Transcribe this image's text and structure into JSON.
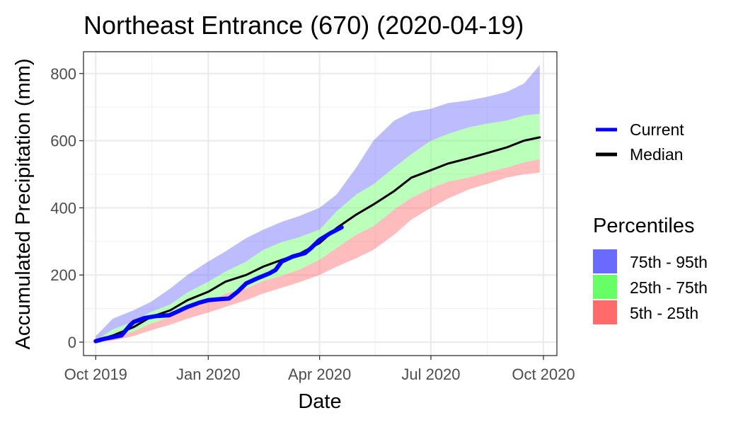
{
  "chart_data": {
    "type": "area",
    "title": "Northeast Entrance (670) (2020-04-19)",
    "xlabel": "Date",
    "ylabel": "Accumulated Precipitation (mm)",
    "x_ticks": [
      "Oct 2019",
      "Jan 2020",
      "Apr 2020",
      "Jul 2020",
      "Oct 2020"
    ],
    "x_tick_dates": [
      "2019-10-01",
      "2020-01-01",
      "2020-04-01",
      "2020-07-01",
      "2020-10-01"
    ],
    "xlim": [
      "2019-09-21",
      "2020-10-12"
    ],
    "y_ticks": [
      0,
      200,
      400,
      600,
      800
    ],
    "ylim": [
      -40,
      865
    ],
    "grid": true,
    "legend_position": "right",
    "lines": [
      {
        "name": "Current",
        "color": "#0000ff",
        "x": [
          "2019-10-01",
          "2019-10-08",
          "2019-10-15",
          "2019-10-22",
          "2019-10-29",
          "2019-11-01",
          "2019-11-10",
          "2019-11-20",
          "2019-11-30",
          "2019-12-05",
          "2019-12-15",
          "2019-12-25",
          "2020-01-01",
          "2020-01-10",
          "2020-01-18",
          "2020-01-25",
          "2020-02-01",
          "2020-02-10",
          "2020-02-20",
          "2020-02-25",
          "2020-03-01",
          "2020-03-10",
          "2020-03-20",
          "2020-03-25",
          "2020-04-01",
          "2020-04-10",
          "2020-04-19"
        ],
        "y": [
          3,
          10,
          15,
          20,
          50,
          60,
          72,
          78,
          80,
          88,
          105,
          118,
          125,
          128,
          130,
          150,
          175,
          190,
          205,
          215,
          240,
          255,
          265,
          280,
          305,
          325,
          342
        ]
      },
      {
        "name": "Median",
        "color": "#000000",
        "x": [
          "2019-10-01",
          "2019-10-15",
          "2019-11-01",
          "2019-11-15",
          "2019-12-01",
          "2019-12-15",
          "2020-01-01",
          "2020-01-15",
          "2020-02-01",
          "2020-02-15",
          "2020-03-01",
          "2020-03-15",
          "2020-04-01",
          "2020-04-15",
          "2020-05-01",
          "2020-05-15",
          "2020-06-01",
          "2020-06-15",
          "2020-07-01",
          "2020-07-15",
          "2020-08-01",
          "2020-08-15",
          "2020-09-01",
          "2020-09-15",
          "2020-09-28"
        ],
        "y": [
          3,
          20,
          45,
          75,
          95,
          125,
          150,
          180,
          200,
          225,
          245,
          262,
          295,
          340,
          380,
          410,
          450,
          490,
          512,
          532,
          548,
          562,
          580,
          600,
          610
        ]
      }
    ],
    "bands": [
      {
        "name": "75th - 95th",
        "color": "#6a6aff",
        "x": [
          "2019-10-01",
          "2019-10-15",
          "2019-11-01",
          "2019-11-15",
          "2019-12-01",
          "2019-12-15",
          "2020-01-01",
          "2020-01-15",
          "2020-02-01",
          "2020-02-15",
          "2020-03-01",
          "2020-03-15",
          "2020-04-01",
          "2020-04-15",
          "2020-05-01",
          "2020-05-15",
          "2020-06-01",
          "2020-06-15",
          "2020-07-01",
          "2020-07-15",
          "2020-08-01",
          "2020-08-15",
          "2020-09-01",
          "2020-09-15",
          "2020-09-28"
        ],
        "low": [
          5,
          38,
          62,
          90,
          112,
          148,
          180,
          210,
          240,
          275,
          298,
          312,
          335,
          390,
          440,
          470,
          520,
          560,
          600,
          620,
          640,
          650,
          660,
          675,
          680
        ],
        "high": [
          18,
          70,
          95,
          120,
          160,
          200,
          240,
          270,
          310,
          335,
          358,
          375,
          400,
          440,
          520,
          600,
          660,
          685,
          695,
          712,
          720,
          730,
          745,
          770,
          825
        ]
      },
      {
        "name": "25th - 75th",
        "color": "#66ff66",
        "x": [
          "2019-10-01",
          "2019-10-15",
          "2019-11-01",
          "2019-11-15",
          "2019-12-01",
          "2019-12-15",
          "2020-01-01",
          "2020-01-15",
          "2020-02-01",
          "2020-02-15",
          "2020-03-01",
          "2020-03-15",
          "2020-04-01",
          "2020-04-15",
          "2020-05-01",
          "2020-05-15",
          "2020-06-01",
          "2020-06-15",
          "2020-07-01",
          "2020-07-15",
          "2020-08-01",
          "2020-08-15",
          "2020-09-01",
          "2020-09-15",
          "2020-09-28"
        ],
        "low": [
          3,
          15,
          32,
          55,
          75,
          100,
          118,
          145,
          160,
          182,
          198,
          215,
          245,
          280,
          320,
          345,
          395,
          430,
          458,
          478,
          490,
          505,
          520,
          535,
          545
        ],
        "high": [
          5,
          38,
          62,
          90,
          112,
          148,
          180,
          210,
          240,
          275,
          298,
          312,
          335,
          390,
          440,
          470,
          520,
          560,
          600,
          620,
          640,
          650,
          660,
          675,
          680
        ]
      },
      {
        "name": "5th - 25th",
        "color": "#ff6a6a",
        "x": [
          "2019-10-01",
          "2019-10-15",
          "2019-11-01",
          "2019-11-15",
          "2019-12-01",
          "2019-12-15",
          "2020-01-01",
          "2020-01-15",
          "2020-02-01",
          "2020-02-15",
          "2020-03-01",
          "2020-03-15",
          "2020-04-01",
          "2020-04-15",
          "2020-05-01",
          "2020-05-15",
          "2020-06-01",
          "2020-06-15",
          "2020-07-01",
          "2020-07-15",
          "2020-08-01",
          "2020-08-15",
          "2020-09-01",
          "2020-09-15",
          "2020-09-28"
        ],
        "low": [
          0,
          5,
          18,
          35,
          52,
          70,
          88,
          105,
          125,
          145,
          162,
          178,
          200,
          225,
          250,
          275,
          320,
          365,
          400,
          428,
          455,
          470,
          490,
          500,
          505
        ],
        "high": [
          3,
          15,
          32,
          55,
          75,
          100,
          118,
          145,
          160,
          182,
          198,
          215,
          245,
          280,
          320,
          345,
          395,
          430,
          458,
          478,
          490,
          505,
          520,
          535,
          545
        ]
      }
    ],
    "legend": {
      "lines_title": "",
      "lines": [
        "Current",
        "Median"
      ],
      "bands_title": "Percentiles",
      "bands": [
        "75th - 95th",
        "25th - 75th",
        "5th - 25th"
      ]
    }
  }
}
